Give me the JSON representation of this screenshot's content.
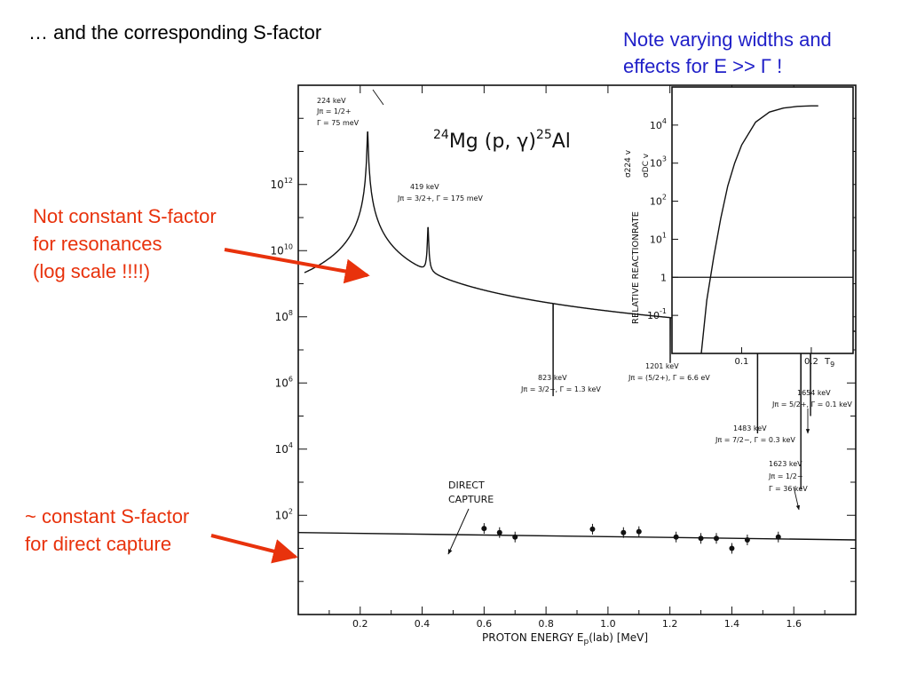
{
  "slide": {
    "title": "… and the corresponding S-factor",
    "note_lines": [
      "Note varying widths and",
      "effects for E >> Γ !"
    ],
    "annotation_resonances": [
      "Not constant S-factor",
      "for resonances",
      "(log scale !!!!)"
    ],
    "annotation_direct_capture": [
      "~ constant S-factor",
      "for direct capture"
    ],
    "colors": {
      "note": "#2020c8",
      "annotation": "#e8320c",
      "arrow": "#e8320c",
      "ink": "#111111"
    }
  },
  "chart_data": [
    {
      "type": "line",
      "title": "24Mg (p,γ)25Al",
      "title_parts": {
        "a": "24",
        "b": "Mg (p, γ)",
        "c": "25",
        "d": "Al"
      },
      "xlabel": "PROTON ENERGY Ep(lab) [MeV]",
      "xlabel_parts": {
        "a": "PROTON ENERGY E",
        "b": "p",
        "c": "(lab)  [MeV]"
      },
      "xlim": [
        0.0,
        1.8
      ],
      "yscale": "log",
      "ylim": [
        0.1,
        1000000000000000.0
      ],
      "xticks": [
        "0.2",
        "0.4",
        "0.6",
        "0.8",
        "1.0",
        "1.2",
        "1.4",
        "1.6"
      ],
      "yticks": [
        {
          "base": "10",
          "exp": "2",
          "value": 100
        },
        {
          "base": "10",
          "exp": "4",
          "value": 10000
        },
        {
          "base": "10",
          "exp": "6",
          "value": 1000000
        },
        {
          "base": "10",
          "exp": "8",
          "value": 100000000
        },
        {
          "base": "10",
          "exp": "10",
          "value": 10000000000
        },
        {
          "base": "10",
          "exp": "12",
          "value": 1000000000000
        }
      ],
      "direct_capture": {
        "label": [
          "DIRECT",
          "CAPTURE"
        ],
        "x": [
          0.0,
          1.8
        ],
        "y": [
          30,
          18
        ]
      },
      "resonances": [
        {
          "energy_mev": 0.224,
          "peak": 40000000000000.0,
          "gamma_mev": 0.003,
          "labels": [
            "224 keV",
            "Jπ = 1/2+",
            "Γ = 75 meV"
          ]
        },
        {
          "energy_mev": 0.419,
          "peak": 50000000000.0,
          "gamma_mev": 0.003,
          "labels": [
            "419 keV",
            "Jπ = 3/2+, Γ = 175 meV"
          ]
        },
        {
          "energy_mev": 0.823,
          "peak": 400000.0,
          "gamma_mev": 0.012,
          "labels": [
            "823 keV",
            "Jπ = 3/2−, Γ = 1.3 keV"
          ]
        },
        {
          "energy_mev": 1.201,
          "peak": 4000000.0,
          "gamma_mev": 0.0006,
          "labels": [
            "1201 keV",
            "Jπ = (5/2+), Γ = 6.6 eV"
          ]
        },
        {
          "energy_mev": 1.483,
          "peak": 30000.0,
          "gamma_mev": 0.0012,
          "labels": [
            "1483 keV",
            "Jπ = 7/2−, Γ = 0.3 keV"
          ]
        },
        {
          "energy_mev": 1.623,
          "peak": 600,
          "gamma_mev": 0.036,
          "labels": [
            "1623 keV",
            "Jπ = 1/2−",
            "Γ = 36 keV"
          ]
        },
        {
          "energy_mev": 1.654,
          "peak": 100000.0,
          "gamma_mev": 0.0015,
          "labels": [
            "1654 keV",
            "Jπ = 5/2+, Γ = 0.1 keV"
          ]
        }
      ],
      "measured_points": {
        "x": [
          0.6,
          0.65,
          0.7,
          0.95,
          1.05,
          1.1,
          1.22,
          1.3,
          1.35,
          1.4,
          1.45,
          1.55
        ],
        "y": [
          40,
          30,
          22,
          38,
          30,
          32,
          22,
          20,
          20,
          10,
          18,
          22
        ]
      }
    },
    {
      "type": "line",
      "xlabel": "T9",
      "ylabel": "RELATIVE REACTIONRATE <σ224 v>/<σDC v>",
      "ylabel_parts": {
        "main": "RELATIVE  REACTIONRATE",
        "num": "σ224 v",
        "den": "σDC v"
      },
      "xlim": [
        0.0,
        0.26
      ],
      "yscale": "log",
      "ylim": [
        0.01,
        100000
      ],
      "xticks": [
        "0.1",
        "0.2"
      ],
      "yticks": [
        {
          "base": "10",
          "exp": "-1",
          "value": 0.1
        },
        {
          "base": "1",
          "exp": "",
          "value": 1
        },
        {
          "base": "10",
          "exp": "1",
          "value": 10
        },
        {
          "base": "10",
          "exp": "2",
          "value": 100
        },
        {
          "base": "10",
          "exp": "3",
          "value": 1000
        },
        {
          "base": "10",
          "exp": "4",
          "value": 10000
        }
      ],
      "unity_line": 1,
      "curve": {
        "x": [
          0.042,
          0.05,
          0.06,
          0.07,
          0.08,
          0.09,
          0.1,
          0.12,
          0.14,
          0.16,
          0.18,
          0.2,
          0.21
        ],
        "y": [
          0.01,
          0.25,
          3.5,
          35,
          250,
          1000,
          3000,
          12000,
          22000,
          28000,
          31000,
          32000,
          32000
        ]
      }
    }
  ]
}
